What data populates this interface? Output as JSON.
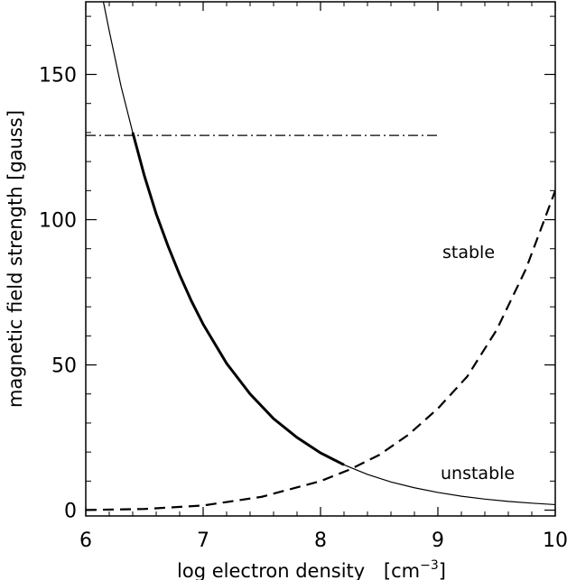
{
  "chart_data": {
    "type": "line",
    "xlabel": "log electron density",
    "xlabel_unit_base": "[cm",
    "xlabel_unit_exp": "−3",
    "xlabel_unit_close": "]",
    "ylabel": "magnetic field strength  [gauss]",
    "xlim": [
      6,
      10
    ],
    "ylim": [
      -2,
      175
    ],
    "x_ticks": [
      6,
      7,
      8,
      9,
      10
    ],
    "y_ticks": [
      0,
      50,
      100,
      150
    ],
    "x_tick_labels": [
      "6",
      "7",
      "8",
      "9",
      "10"
    ],
    "y_tick_labels": [
      "0",
      "50",
      "100",
      "150"
    ],
    "grid": false,
    "annotations": [
      {
        "text": "stable",
        "x": 9.35,
        "y": 88
      },
      {
        "text": "unstable",
        "x": 9.35,
        "y": 12
      }
    ],
    "series": [
      {
        "style": "solid",
        "x": [
          6.15,
          6.2,
          6.3,
          6.4,
          6.5,
          6.6,
          6.7,
          6.8,
          6.9,
          7.0,
          7.2,
          7.4,
          7.6,
          7.8,
          8.0,
          8.2,
          8.4,
          8.6,
          8.8,
          9.0,
          9.2,
          9.4,
          9.6,
          9.8,
          10.0
        ],
        "y": [
          175,
          165,
          146,
          130,
          115,
          102,
          91,
          81,
          72,
          64,
          50.5,
          40,
          31.5,
          25,
          19.7,
          15.6,
          12.3,
          9.7,
          7.7,
          6.1,
          4.8,
          3.8,
          3.0,
          2.4,
          1.9
        ],
        "thick_segment": [
          6.4,
          8.3
        ]
      },
      {
        "style": "dashed",
        "x": [
          6.0,
          6.5,
          7.0,
          7.5,
          8.0,
          8.25,
          8.5,
          8.75,
          9.0,
          9.25,
          9.5,
          9.75,
          10.0
        ],
        "y": [
          0.05,
          0.4,
          1.6,
          4.6,
          10,
          14,
          19,
          26,
          35,
          46,
          62,
          83,
          110
        ]
      },
      {
        "style": "dashdot",
        "x": [
          6.0,
          9.0
        ],
        "y": [
          129,
          129
        ]
      }
    ]
  }
}
